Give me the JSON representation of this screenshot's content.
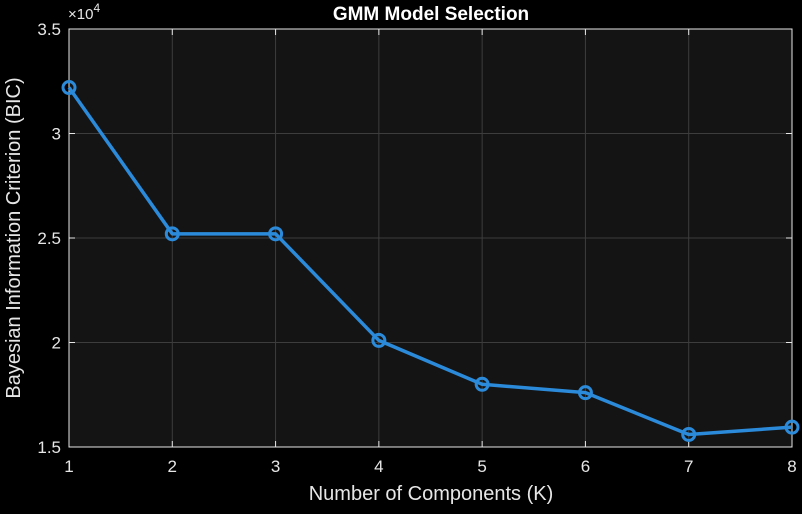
{
  "chart_data": {
    "type": "line",
    "title": "GMM Model Selection",
    "xlabel": "Number of Components (K)",
    "ylabel": "Bayesian Information Criterion (BIC)",
    "y_exponent_label": "×10",
    "y_exponent_power": "4",
    "xlim": [
      1,
      8
    ],
    "ylim": [
      15000,
      35000
    ],
    "x_ticks": [
      1,
      2,
      3,
      4,
      5,
      6,
      7,
      8
    ],
    "x_tick_labels": [
      "1",
      "2",
      "3",
      "4",
      "5",
      "6",
      "7",
      "8"
    ],
    "y_ticks": [
      15000,
      20000,
      25000,
      30000,
      35000
    ],
    "y_tick_labels": [
      "1.5",
      "2",
      "2.5",
      "3",
      "3.5"
    ],
    "grid": true,
    "series": [
      {
        "x": [
          1,
          2,
          3,
          4,
          5,
          6,
          7,
          8
        ],
        "values": [
          32200,
          25200,
          25200,
          20100,
          18000,
          17600,
          15600,
          15950
        ],
        "color": "#2b8ad9",
        "marker": "circle"
      }
    ]
  },
  "colors": {
    "background": "#000000",
    "plot_area": "#141414",
    "grid": "#3d3d3d",
    "axis": "#e6e6e6",
    "series": "#2b8ad9"
  }
}
